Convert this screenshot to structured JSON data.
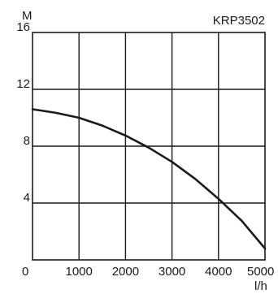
{
  "chart_data": {
    "type": "line",
    "model_label": "KRP3502",
    "ylabel": "M",
    "xlabel": "l/h",
    "xlim": [
      0,
      5000
    ],
    "ylim": [
      0,
      16
    ],
    "grid": true,
    "x_ticks": [
      0,
      1000,
      2000,
      3000,
      4000,
      5000
    ],
    "x_tick_labels": [
      "0",
      "1000",
      "2000",
      "3000",
      "4000",
      "5000"
    ],
    "y_ticks": [
      4,
      8,
      12,
      16
    ],
    "y_tick_labels": [
      "4",
      "8",
      "12",
      "16"
    ],
    "series": [
      {
        "x": [
          0,
          500,
          1000,
          1500,
          2000,
          2500,
          3000,
          3500,
          4000,
          4500,
          5000
        ],
        "y": [
          10.6,
          10.35,
          10.0,
          9.45,
          8.75,
          7.9,
          6.9,
          5.7,
          4.3,
          2.75,
          0.8
        ]
      }
    ]
  }
}
